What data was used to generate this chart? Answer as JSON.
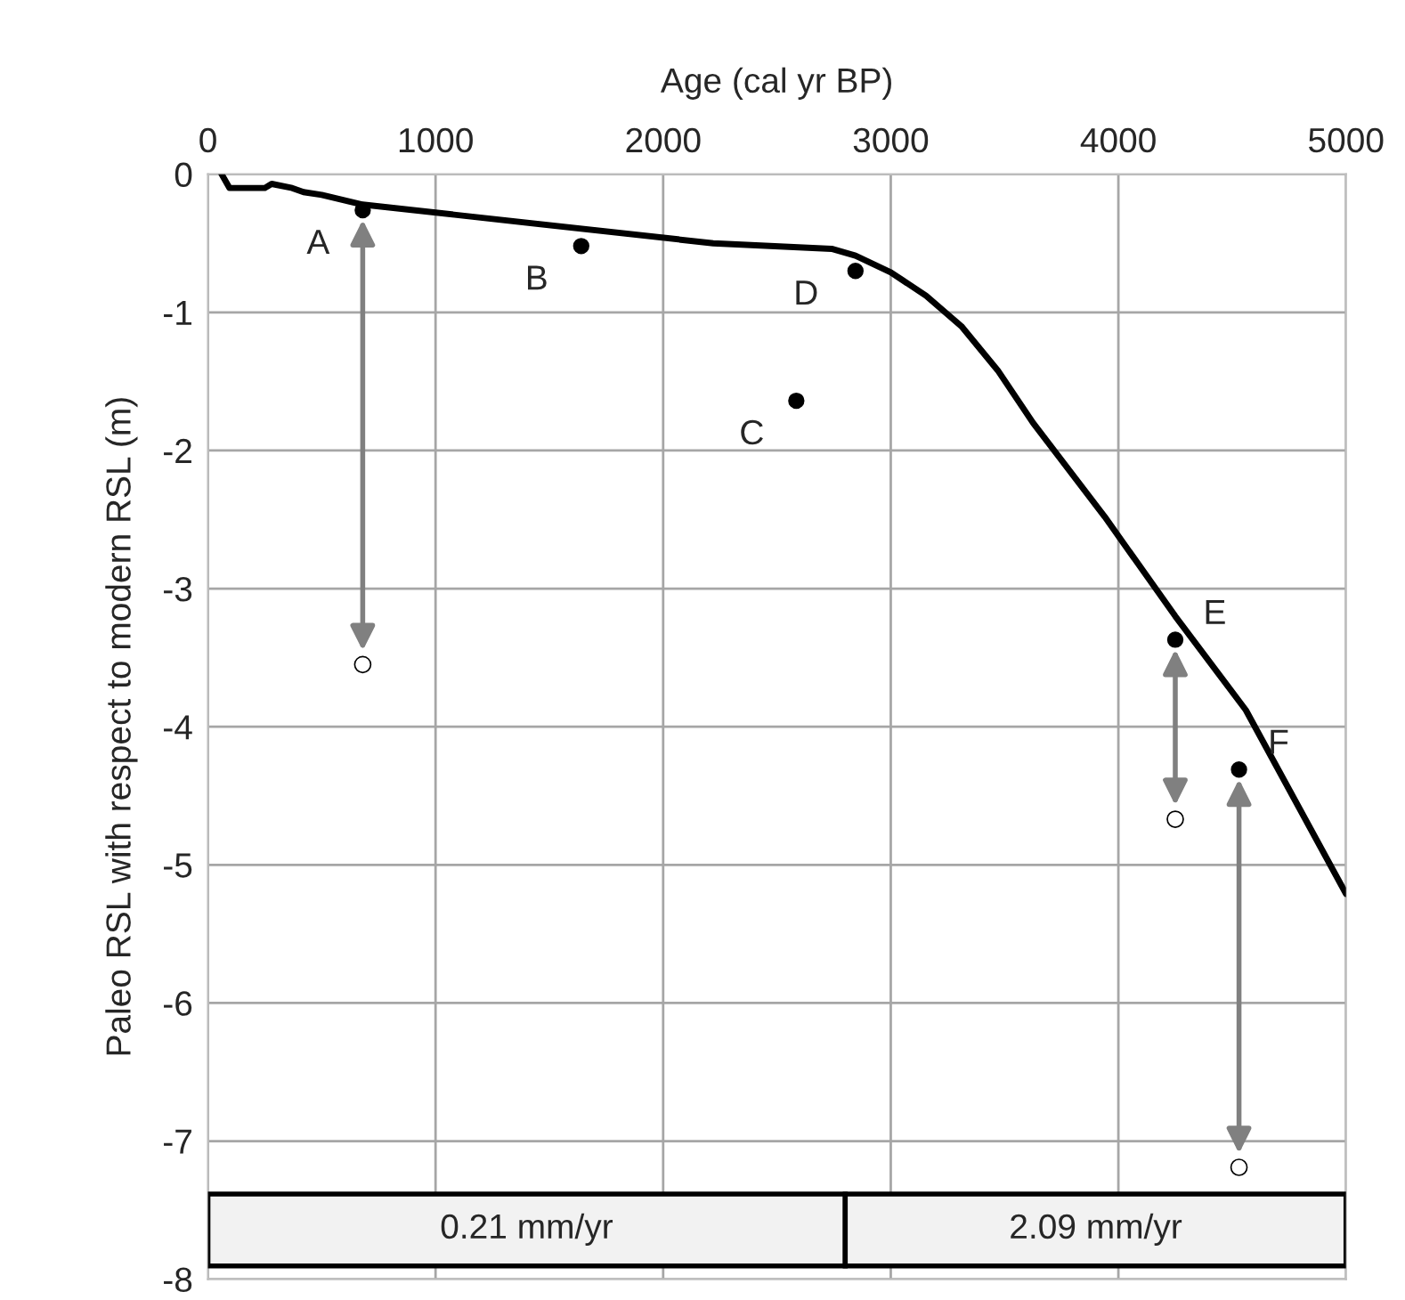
{
  "chart_data": {
    "type": "line",
    "xlabel": "Age (cal yr BP)",
    "ylabel": "Paleo RSL with respect to modern RSL (m)",
    "xlim": [
      0,
      5000
    ],
    "xticks": [
      0,
      1000,
      2000,
      3000,
      4000,
      5000
    ],
    "ylim": [
      -8,
      0
    ],
    "yticks": [
      0,
      -1,
      -2,
      -3,
      -4,
      -5,
      -6,
      -7,
      -8
    ],
    "grid": true,
    "series": [
      {
        "color": "#000000",
        "marker": "none",
        "line_style": "solid",
        "x": [
          60,
          95,
          250,
          280,
          370,
          420,
          500,
          680,
          2220,
          2740,
          2845,
          3000,
          3155,
          3310,
          3470,
          3625,
          3940,
          4250,
          4560,
          5000
        ],
        "values": [
          0,
          -0.1,
          -0.1,
          -0.07,
          -0.1,
          -0.13,
          -0.15,
          -0.22,
          -0.5,
          -0.54,
          -0.59,
          -0.71,
          -0.88,
          -1.1,
          -1.42,
          -1.8,
          -2.48,
          -3.2,
          -3.88,
          -5.21
        ]
      },
      {
        "type": "scatter",
        "color": "#000000",
        "marker": "circle",
        "x": [
          680,
          1640,
          2585,
          2845,
          4250,
          4530
        ],
        "values": [
          -0.26,
          -0.52,
          -1.64,
          -0.7,
          -3.37,
          -4.31
        ]
      },
      {
        "type": "scatter",
        "color": "#ffffff",
        "marker": "circle",
        "x": [
          680,
          4250,
          4530
        ],
        "values": [
          -3.55,
          -4.67,
          -7.19
        ]
      }
    ],
    "annotations": [
      {
        "text": "A",
        "x": 680,
        "y": -0.26
      },
      {
        "text": "B",
        "x": 1640,
        "y": -0.52
      },
      {
        "text": "C",
        "x": 2585,
        "y": -1.64
      },
      {
        "text": "D",
        "x": 2845,
        "y": -0.7
      },
      {
        "text": "E",
        "x": 4250,
        "y": -3.37
      },
      {
        "text": "F",
        "x": 4530,
        "y": -4.31
      }
    ],
    "bands": [
      {
        "axis": "x",
        "from": 0,
        "to": 2800,
        "label": "0.21 mm/yr",
        "color": "#f2f2f2"
      },
      {
        "axis": "x",
        "from": 2800,
        "to": 5000,
        "label": "2.09 mm/yr",
        "color": "#f2f2f2"
      }
    ]
  }
}
